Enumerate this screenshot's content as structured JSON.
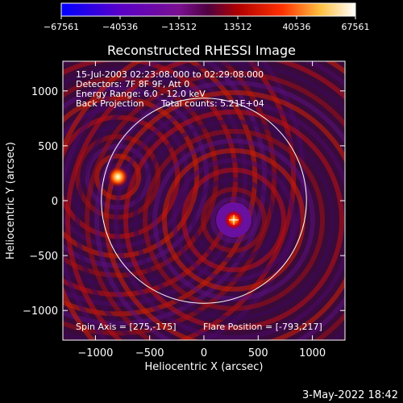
{
  "chart_data": {
    "type": "heatmap",
    "title": "Reconstructed RHESSI Image",
    "xlabel": "Heliocentric X (arcsec)",
    "ylabel": "Heliocentric Y (arcsec)",
    "xlim": [
      -1300,
      1300
    ],
    "ylim": [
      -1270,
      1270
    ],
    "xticks": [
      -1000,
      -500,
      0,
      500,
      1000
    ],
    "xtick_labels": [
      "−1000",
      "−500",
      "0",
      "500",
      "1000"
    ],
    "yticks": [
      -1000,
      -500,
      0,
      500,
      1000
    ],
    "ytick_labels": [
      "−1000",
      "−500",
      "0",
      "500",
      "1000"
    ],
    "colorbar": {
      "min": -67561,
      "max": 67561,
      "ticks": [
        -67561,
        -40536,
        -13512,
        13512,
        40536,
        67561
      ],
      "tick_labels": [
        "−67561",
        "−40536",
        "−13512",
        "13512",
        "40536",
        "67561"
      ]
    },
    "solar_limb_radius_arcsec": 945,
    "sources": [
      {
        "x": -793,
        "y": 217,
        "relative_intensity": 1.0
      },
      {
        "x": 275,
        "y": -175,
        "relative_intensity": 0.85
      }
    ],
    "spin_axis_marker": {
      "x": 275,
      "y": -175
    },
    "annotations": {
      "time_range": "15-Jul-2003 02:23:08.000 to 02:29:08.000",
      "detectors": "Detectors: 7F 8F 9F, Att 0",
      "energy": "Energy Range: 6.0 - 12.0 keV",
      "method": "Back Projection",
      "total_counts": "Total counts: 5.21E+04",
      "spin_axis": "Spin Axis = [275,-175]",
      "flare_position": "Flare Position = [-793,217]"
    }
  },
  "footer": {
    "date_stamp": "3-May-2022 18:42"
  },
  "colors": {
    "background": "#000000",
    "text": "#ffffff",
    "colormap": [
      "#0000ff",
      "#5a00c8",
      "#a0148c",
      "#000000",
      "#780000",
      "#e60000",
      "#ff6400",
      "#ffdc50",
      "#ffffff"
    ]
  }
}
